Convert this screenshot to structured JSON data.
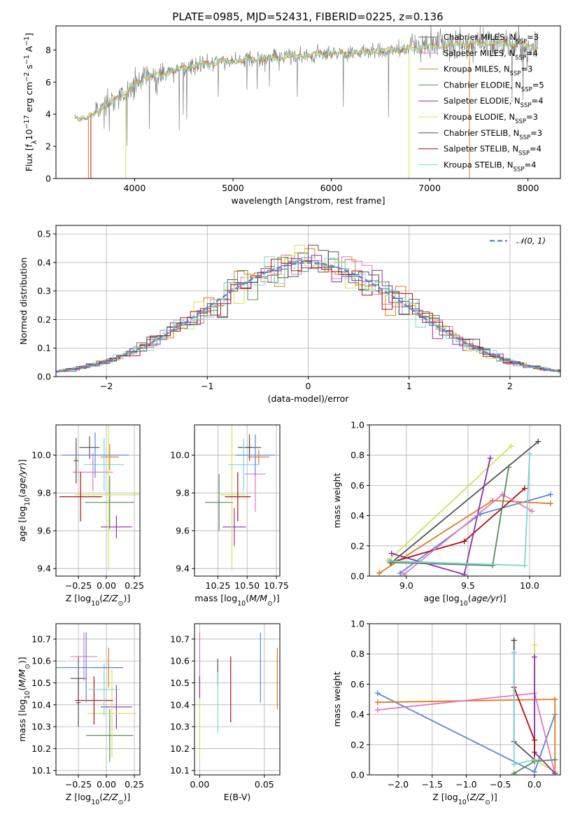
{
  "figure_title": "PLATE=0985, MJD=52431, FIBERID=0225, z=0.136",
  "colors": {
    "chabrier_miles": "#5a5a5a",
    "salpeter_miles": "#e377c2",
    "kroupa_miles": "#e07a1f",
    "chabrier_elodie": "#5a8a5a",
    "salpeter_elodie": "#8b2fb0",
    "kroupa_elodie": "#d4e157",
    "chabrier_stelib": "#505050",
    "salpeter_stelib": "#b01010",
    "kroupa_stelib": "#7fd6d6",
    "blue_series": "#5b86d8",
    "normal_curve": "#5b86d8",
    "data": "#808080"
  },
  "chart_data": [
    {
      "id": "spectrum",
      "type": "line",
      "title": "PLATE=0985, MJD=52431, FIBERID=0225, z=0.136",
      "xlabel": "wavelength [Angstrom, rest frame]",
      "ylabel": "Flux [f_λ 10^-17 erg cm^-2 s^-1 A^-1]",
      "xlim": [
        3200,
        8330
      ],
      "ylim": [
        0,
        9.5
      ],
      "xticks": [
        4000,
        5000,
        6000,
        7000,
        8000
      ],
      "yticks": [
        0,
        2,
        4,
        6,
        8
      ],
      "legend_position": "upper-right",
      "legend": [
        {
          "label": "Chabrier MILES, N",
          "sub": "SSP",
          "tail": "=3",
          "color": "#5a5a5a"
        },
        {
          "label": "Salpeter MILES, N",
          "sub": "SSP",
          "tail": "=4",
          "color": "#e377c2"
        },
        {
          "label": "Kroupa MILES, N",
          "sub": "SSP",
          "tail": "=3",
          "color": "#e07a1f"
        },
        {
          "label": "Chabrier ELODIE, N",
          "sub": "SSP",
          "tail": "=5",
          "color": "#5a8a5a"
        },
        {
          "label": "Salpeter ELODIE, N",
          "sub": "SSP",
          "tail": "=4",
          "color": "#8b2fb0"
        },
        {
          "label": "Kroupa ELODIE, N",
          "sub": "SSP",
          "tail": "=3",
          "color": "#d4e157"
        },
        {
          "label": "Chabrier STELIB, N",
          "sub": "SSP",
          "tail": "=3",
          "color": "#505050"
        },
        {
          "label": "Salpeter STELIB, N",
          "sub": "SSP",
          "tail": "=4",
          "color": "#b01010"
        },
        {
          "label": "Kroupa STELIB, N",
          "sub": "SSP",
          "tail": "=4",
          "color": "#7fd6d6"
        }
      ],
      "continuum": {
        "x": [
          3400,
          3500,
          3600,
          3700,
          3800,
          3900,
          4000,
          4100,
          4200,
          4300,
          4400,
          4500,
          4600,
          4700,
          4800,
          4900,
          5000,
          5200,
          5400,
          5600,
          5800,
          6000,
          6200,
          6400,
          6600,
          6800,
          7000,
          7200,
          7400,
          7600,
          7800,
          8000,
          8100
        ],
        "y": [
          3.8,
          3.7,
          4.1,
          4.5,
          4.9,
          5.3,
          5.8,
          6.3,
          6.4,
          6.5,
          6.7,
          6.9,
          7.0,
          7.1,
          7.2,
          7.3,
          7.3,
          7.4,
          7.5,
          7.6,
          7.7,
          7.8,
          7.8,
          7.9,
          8.0,
          8.1,
          8.2,
          8.3,
          8.4,
          8.4,
          8.4,
          8.3,
          8.2
        ]
      }
    },
    {
      "id": "residuals",
      "type": "line",
      "xlabel": "(data-model)/error",
      "ylabel": "Normed distribution",
      "xlim": [
        -2.5,
        2.5
      ],
      "ylim": [
        0,
        0.53
      ],
      "xticks": [
        -2,
        -1,
        0,
        1,
        2
      ],
      "yticks": [
        0.0,
        0.1,
        0.2,
        0.3,
        0.4,
        0.5
      ],
      "legend_position": "upper-right",
      "legend": [
        {
          "label": "𝒩(0, 1)",
          "color": "#5b86d8"
        }
      ],
      "curve": "standard normal"
    },
    {
      "id": "age_vs_Z",
      "type": "scatter",
      "xlabel": "Z [log10(Z/Z⊙)]",
      "ylabel": "age [log10(age/yr)]",
      "xlim": [
        -0.45,
        0.3
      ],
      "ylim": [
        9.36,
        10.16
      ],
      "xticks": [
        -0.25,
        0.0,
        0.25
      ],
      "yticks": [
        9.4,
        9.6,
        9.8,
        10.0
      ],
      "points": [
        {
          "c": "chabrier_miles",
          "x": -0.15,
          "xe": 0.09,
          "y": 10.04,
          "ye": 0.06
        },
        {
          "c": "salpeter_miles",
          "x": -0.12,
          "xe": 0.18,
          "y": 9.91,
          "ye": 0.1
        },
        {
          "c": "kroupa_miles",
          "x": 0.03,
          "xe": 0.08,
          "y": 9.99,
          "ye": 0.07
        },
        {
          "c": "chabrier_elodie",
          "x": 0.03,
          "xe": 0.22,
          "y": 9.75,
          "ye": 0.14
        },
        {
          "c": "salpeter_elodie",
          "x": 0.09,
          "xe": 0.14,
          "y": 9.62,
          "ye": 0.06
        },
        {
          "c": "kroupa_elodie",
          "x": 0.02,
          "xe": 0.3,
          "y": 9.79,
          "ye": 0.4
        },
        {
          "c": "chabrier_stelib",
          "x": -0.27,
          "xe": 0.02,
          "y": 9.97,
          "ye": 0.12
        },
        {
          "c": "salpeter_stelib",
          "x": -0.23,
          "xe": 0.19,
          "y": 9.78,
          "ye": 0.13
        },
        {
          "c": "kroupa_stelib",
          "x": -0.02,
          "xe": 0.18,
          "y": 9.95,
          "ye": 0.14
        },
        {
          "c": "blue_series",
          "x": -0.1,
          "xe": 0.3,
          "y": 10.0,
          "ye": 0.12
        }
      ]
    },
    {
      "id": "age_vs_mass",
      "type": "scatter",
      "xlabel": "mass [log10(M/M⊙)]",
      "xlim": [
        10.05,
        10.78
      ],
      "ylim": [
        9.36,
        10.16
      ],
      "xticks": [
        10.25,
        10.5,
        10.75
      ],
      "yticks": [
        9.4,
        9.6,
        9.8,
        10.0
      ],
      "points": [
        {
          "c": "chabrier_miles",
          "x": 10.52,
          "xe": 0.1,
          "y": 10.04,
          "ye": 0.07
        },
        {
          "c": "salpeter_miles",
          "x": 10.57,
          "xe": 0.09,
          "y": 9.9,
          "ye": 0.2
        },
        {
          "c": "kroupa_miles",
          "x": 10.6,
          "xe": 0.09,
          "y": 9.99,
          "ye": 0.04
        },
        {
          "c": "chabrier_elodie",
          "x": 10.26,
          "xe": 0.12,
          "y": 9.75,
          "ye": 0.15
        },
        {
          "c": "salpeter_elodie",
          "x": 10.39,
          "xe": 0.1,
          "y": 9.62,
          "ye": 0.1
        },
        {
          "c": "kroupa_elodie",
          "x": 10.37,
          "xe": 0.12,
          "y": 9.79,
          "ye": 0.4
        },
        {
          "c": "chabrier_stelib",
          "x": 10.52,
          "xe": 0.02,
          "y": 10.04,
          "ye": 0.05
        },
        {
          "c": "salpeter_stelib",
          "x": 10.42,
          "xe": 0.11,
          "y": 9.78,
          "ye": 0.13
        },
        {
          "c": "kroupa_stelib",
          "x": 10.47,
          "xe": 0.13,
          "y": 9.95,
          "ye": 0.14
        },
        {
          "c": "blue_series",
          "x": 10.57,
          "xe": 0.17,
          "y": 10.0,
          "ye": 0.11
        }
      ]
    },
    {
      "id": "weight_vs_age",
      "type": "line",
      "xlabel": "age [log10(age/yr)]",
      "ylabel": "mass weight",
      "xlim": [
        8.7,
        10.25
      ],
      "ylim": [
        0,
        1.0
      ],
      "xticks": [
        9.0,
        9.5,
        10.0
      ],
      "yticks": [
        0.0,
        0.2,
        0.4,
        0.6,
        0.8,
        1.0
      ],
      "series": [
        {
          "c": "blue_series",
          "x": [
            8.95,
            9.6,
            10.17
          ],
          "y": [
            0.02,
            0.41,
            0.54
          ]
        },
        {
          "c": "kroupa_miles",
          "x": [
            8.78,
            9.7,
            10.17
          ],
          "y": [
            0.02,
            0.5,
            0.48
          ]
        },
        {
          "c": "chabrier_stelib",
          "x": [
            8.88,
            10.07
          ],
          "y": [
            0.09,
            0.89
          ]
        },
        {
          "c": "kroupa_elodie",
          "x": [
            8.85,
            9.85
          ],
          "y": [
            0.1,
            0.86
          ]
        },
        {
          "c": "salpeter_elodie",
          "x": [
            8.88,
            9.47,
            9.68
          ],
          "y": [
            0.15,
            0.01,
            0.78
          ]
        },
        {
          "c": "salpeter_stelib",
          "x": [
            8.87,
            9.47,
            9.96
          ],
          "y": [
            0.09,
            0.23,
            0.58
          ]
        },
        {
          "c": "salpeter_miles",
          "x": [
            8.98,
            9.78,
            10.02
          ],
          "y": [
            0.01,
            0.54,
            0.43
          ]
        },
        {
          "c": "chabrier_elodie",
          "x": [
            8.88,
            9.7,
            9.83
          ],
          "y": [
            0.09,
            0.07,
            0.72
          ]
        },
        {
          "c": "kroupa_stelib",
          "x": [
            8.86,
            9.96,
            10.0
          ],
          "y": [
            0.1,
            0.07,
            0.81
          ]
        }
      ]
    },
    {
      "id": "mass_vs_Z",
      "type": "scatter",
      "xlabel": "Z [log10(Z/Z⊙)]",
      "ylabel": "mass [log10(M/M⊙)]",
      "xlim": [
        -0.45,
        0.3
      ],
      "ylim": [
        10.08,
        10.77
      ],
      "xticks": [
        -0.25,
        0.0,
        0.25
      ],
      "yticks": [
        10.1,
        10.2,
        10.3,
        10.4,
        10.5,
        10.6,
        10.7
      ],
      "points": [
        {
          "c": "chabrier_miles",
          "x": -0.25,
          "xe": 0.07,
          "y": 10.52,
          "ye": 0.1
        },
        {
          "c": "salpeter_miles",
          "x": -0.2,
          "xe": 0.12,
          "y": 10.62,
          "ye": 0.11
        },
        {
          "c": "kroupa_miles",
          "x": 0.02,
          "xe": 0.13,
          "y": 10.57,
          "ye": 0.09
        },
        {
          "c": "chabrier_elodie",
          "x": 0.03,
          "xe": 0.21,
          "y": 10.26,
          "ye": 0.12
        },
        {
          "c": "salpeter_elodie",
          "x": 0.09,
          "xe": 0.14,
          "y": 10.39,
          "ye": 0.1
        },
        {
          "c": "kroupa_elodie",
          "x": 0.05,
          "xe": 0.22,
          "y": 10.36,
          "ye": 0.2
        },
        {
          "c": "chabrier_stelib",
          "x": -0.25,
          "xe": 0.02,
          "y": 10.41,
          "ye": 0.11
        },
        {
          "c": "salpeter_stelib",
          "x": -0.11,
          "xe": 0.17,
          "y": 10.42,
          "ye": 0.11
        },
        {
          "c": "kroupa_stelib",
          "x": -0.02,
          "xe": 0.14,
          "y": 10.47,
          "ye": 0.12
        },
        {
          "c": "blue_series",
          "x": -0.18,
          "xe": 0.32,
          "y": 10.57,
          "ye": 0.16
        }
      ]
    },
    {
      "id": "mass_vs_ebv",
      "type": "scatter",
      "xlabel": "E(B-V)",
      "xlim": [
        -0.004,
        0.062
      ],
      "ylim": [
        10.08,
        10.77
      ],
      "xticks": [
        0.0,
        0.05
      ],
      "yticks": [
        10.1,
        10.2,
        10.3,
        10.4,
        10.5,
        10.6,
        10.7
      ],
      "points": [
        {
          "c": "salpeter_miles",
          "x": 0.0,
          "y": 10.62,
          "ye": 0.11
        },
        {
          "c": "salpeter_elodie",
          "x": 0.0,
          "y": 10.48,
          "ye": 0.05
        },
        {
          "c": "kroupa_elodie",
          "x": 0.0,
          "y": 10.28,
          "ye": 0.14
        },
        {
          "c": "chabrier_stelib",
          "x": 0.014,
          "y": 10.55,
          "ye": 0.06
        },
        {
          "c": "kroupa_stelib",
          "x": 0.014,
          "y": 10.41,
          "ye": 0.14
        },
        {
          "c": "salpeter_stelib",
          "x": 0.024,
          "y": 10.47,
          "ye": 0.15
        },
        {
          "c": "blue_series",
          "x": 0.047,
          "y": 10.57,
          "ye": 0.16
        },
        {
          "c": "kroupa_miles",
          "x": 0.06,
          "y": 10.52,
          "ye": 0.14
        }
      ]
    },
    {
      "id": "weight_vs_Z",
      "type": "line",
      "xlabel": "Z [log10(Z/Z⊙)]",
      "ylabel": "mass weight",
      "xlim": [
        -2.42,
        0.38
      ],
      "ylim": [
        0,
        1.0
      ],
      "xticks": [
        -2.0,
        -1.5,
        -1.0,
        -0.5,
        0.0
      ],
      "yticks": [
        0.0,
        0.2,
        0.4,
        0.6,
        0.8,
        1.0
      ],
      "series": [
        {
          "c": "blue_series",
          "x": [
            -2.3,
            0.0,
            0.3
          ],
          "y": [
            0.54,
            0.02,
            0.4
          ]
        },
        {
          "c": "kroupa_miles",
          "x": [
            -2.3,
            0.3,
            0.3
          ],
          "y": [
            0.48,
            0.5,
            0.02
          ]
        },
        {
          "c": "salpeter_miles",
          "x": [
            -2.3,
            0.0,
            0.3
          ],
          "y": [
            0.43,
            0.54,
            0.01
          ]
        },
        {
          "c": "chabrier_stelib",
          "x": [
            -0.3,
            -0.3,
            0.0
          ],
          "y": [
            0.89,
            0.22,
            0.1
          ]
        },
        {
          "c": "kroupa_elodie",
          "x": [
            0.0,
            0.0,
            0.3
          ],
          "y": [
            0.86,
            0.1,
            0.02
          ]
        },
        {
          "c": "salpeter_elodie",
          "x": [
            0.0,
            0.0,
            0.3
          ],
          "y": [
            0.78,
            0.15,
            0.01
          ]
        },
        {
          "c": "salpeter_stelib",
          "x": [
            -0.3,
            0.0,
            0.0
          ],
          "y": [
            0.58,
            0.23,
            0.09
          ]
        },
        {
          "c": "chabrier_elodie",
          "x": [
            -0.3,
            0.0,
            0.3
          ],
          "y": [
            0.01,
            0.09,
            0.1
          ]
        },
        {
          "c": "kroupa_stelib",
          "x": [
            -0.3,
            -0.3,
            0.0
          ],
          "y": [
            0.81,
            0.07,
            0.1
          ]
        }
      ]
    }
  ],
  "text": {
    "ax1_ylabel": "Flux [f",
    "ax1_ylabel_sub": "λ",
    "ax1_ylabel_mid": "10",
    "ax1_ylabel_sup1": "−17",
    "ax1_ylabel_mid2": " erg cm",
    "ax1_ylabel_sup2": "−2",
    "ax1_ylabel_mid3": " s",
    "ax1_ylabel_sup3": "−1",
    "ax1_ylabel_tail": " A",
    "ax1_ylabel_sup4": "−1",
    "ax1_ylabel_end": "]"
  }
}
